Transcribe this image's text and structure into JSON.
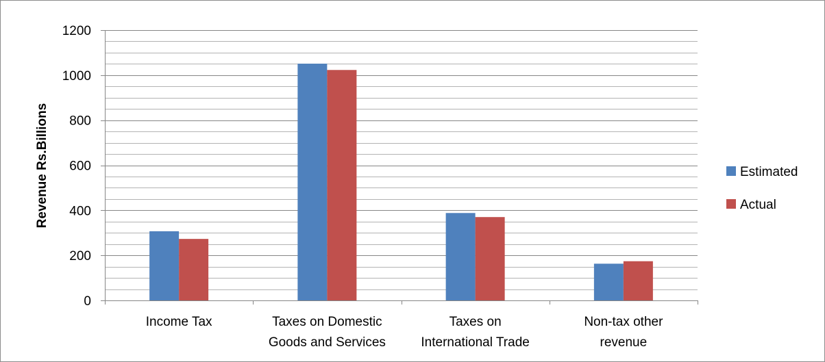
{
  "chart_data": {
    "type": "bar",
    "title": "",
    "xlabel": "",
    "ylabel": "Revenue Rs.Billions",
    "ylim": [
      0,
      1200
    ],
    "yticks": [
      0,
      200,
      400,
      600,
      800,
      1000,
      1200
    ],
    "minor_grid_step": 50,
    "grid": true,
    "legend_position": "right",
    "categories": [
      [
        "Income Tax"
      ],
      [
        "Taxes on Domestic",
        "Goods and Services"
      ],
      [
        "Taxes on",
        "International Trade"
      ],
      [
        "Non-tax other",
        "revenue"
      ]
    ],
    "series": [
      {
        "name": "Estimated",
        "color": "#4F81BD",
        "values": [
          307,
          1051,
          388,
          163
        ]
      },
      {
        "name": "Actual",
        "color": "#C0504D",
        "values": [
          273,
          1023,
          370,
          174
        ]
      }
    ]
  }
}
